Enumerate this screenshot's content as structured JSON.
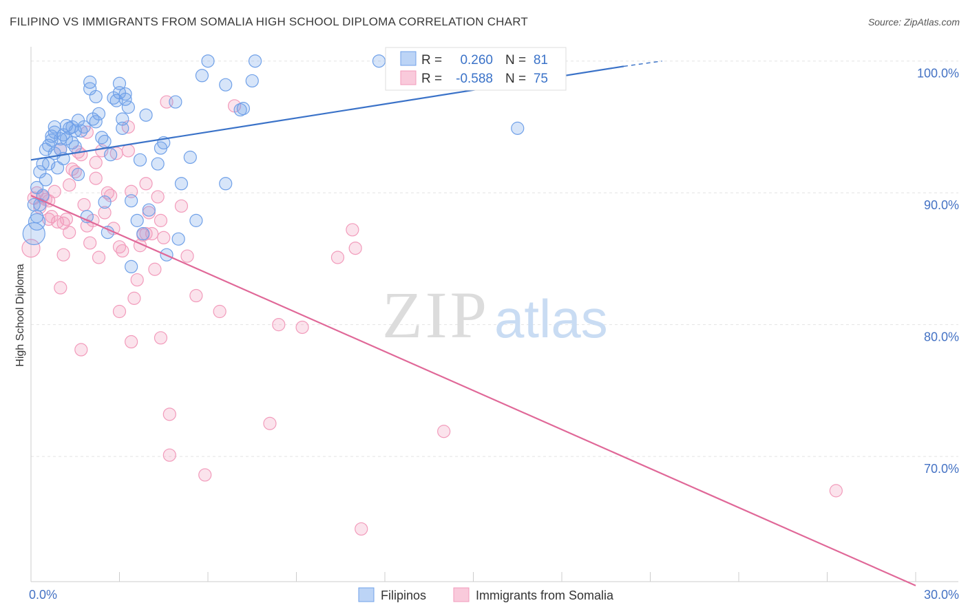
{
  "title": "FILIPINO VS IMMIGRANTS FROM SOMALIA HIGH SCHOOL DIPLOMA CORRELATION CHART",
  "source": "Source: ZipAtlas.com",
  "watermark": {
    "zip": "ZIP",
    "atlas": "atlas"
  },
  "chart_data": {
    "type": "scatter",
    "title": "FILIPINO VS IMMIGRANTS FROM SOMALIA HIGH SCHOOL DIPLOMA CORRELATION CHART",
    "xlabel": "",
    "ylabel": "High School Diploma",
    "xlim": [
      0,
      30
    ],
    "ylim": [
      60.5,
      101.5
    ],
    "x_tick_labels": [
      "0.0%",
      "30.0%"
    ],
    "y_ticks": [
      70,
      80,
      90,
      100
    ],
    "y_tick_labels": [
      "70.0%",
      "80.0%",
      "90.0%",
      "100.0%"
    ],
    "grid": true,
    "legend_position": "bottom-center",
    "series": [
      {
        "name": "Filipinos",
        "color": "#6fa0e8",
        "line_color": "#3a72c8",
        "stats": {
          "r_label": "R =",
          "r": "0.260",
          "n_label": "N =",
          "n": "81"
        },
        "trend": {
          "x0": 0,
          "y0": 92.5,
          "x1": 20.1,
          "y1": 99.6,
          "dash_x1": 21.4,
          "dash_y1": 100.0
        },
        "points": [
          [
            0.1,
            86.9
          ],
          [
            0.1,
            89.1
          ],
          [
            0.2,
            90.4
          ],
          [
            0.2,
            88.2
          ],
          [
            0.3,
            91.6
          ],
          [
            0.4,
            92.2
          ],
          [
            0.4,
            89.8
          ],
          [
            0.5,
            93.3
          ],
          [
            0.5,
            91.0
          ],
          [
            0.6,
            93.6
          ],
          [
            0.6,
            92.2
          ],
          [
            0.7,
            94.0
          ],
          [
            0.7,
            94.3
          ],
          [
            0.8,
            93.0
          ],
          [
            0.8,
            95.0
          ],
          [
            0.8,
            94.6
          ],
          [
            0.9,
            91.9
          ],
          [
            1.0,
            94.1
          ],
          [
            1.0,
            93.3
          ],
          [
            1.1,
            94.4
          ],
          [
            1.1,
            92.6
          ],
          [
            1.2,
            95.1
          ],
          [
            1.2,
            94.1
          ],
          [
            1.3,
            94.9
          ],
          [
            1.4,
            95.0
          ],
          [
            1.4,
            93.8
          ],
          [
            1.5,
            94.7
          ],
          [
            1.5,
            93.5
          ],
          [
            1.6,
            91.4
          ],
          [
            1.6,
            95.5
          ],
          [
            1.7,
            94.7
          ],
          [
            1.8,
            95.0
          ],
          [
            1.9,
            88.2
          ],
          [
            2.0,
            98.4
          ],
          [
            2.0,
            97.9
          ],
          [
            2.1,
            95.6
          ],
          [
            2.2,
            97.3
          ],
          [
            2.2,
            95.4
          ],
          [
            2.3,
            96.0
          ],
          [
            2.4,
            94.2
          ],
          [
            2.5,
            93.9
          ],
          [
            2.5,
            89.3
          ],
          [
            2.6,
            87.0
          ],
          [
            2.7,
            92.9
          ],
          [
            2.8,
            97.2
          ],
          [
            2.9,
            97.0
          ],
          [
            3.0,
            97.6
          ],
          [
            3.0,
            98.3
          ],
          [
            3.1,
            94.9
          ],
          [
            3.1,
            95.6
          ],
          [
            3.2,
            97.1
          ],
          [
            3.2,
            97.5
          ],
          [
            3.3,
            96.5
          ],
          [
            3.4,
            89.4
          ],
          [
            3.4,
            84.4
          ],
          [
            3.6,
            87.9
          ],
          [
            3.7,
            92.5
          ],
          [
            3.8,
            86.9
          ],
          [
            3.9,
            95.9
          ],
          [
            4.0,
            88.7
          ],
          [
            4.3,
            92.2
          ],
          [
            4.4,
            93.4
          ],
          [
            4.5,
            93.8
          ],
          [
            4.6,
            85.3
          ],
          [
            4.9,
            96.9
          ],
          [
            5.0,
            86.5
          ],
          [
            5.1,
            90.7
          ],
          [
            5.4,
            92.7
          ],
          [
            5.6,
            87.9
          ],
          [
            5.8,
            98.9
          ],
          [
            6.0,
            100.0
          ],
          [
            6.6,
            98.2
          ],
          [
            6.6,
            90.7
          ],
          [
            7.1,
            96.3
          ],
          [
            7.2,
            96.4
          ],
          [
            7.5,
            98.5
          ],
          [
            7.6,
            100.0
          ],
          [
            11.8,
            100.0
          ],
          [
            16.5,
            94.9
          ],
          [
            0.3,
            89.1
          ],
          [
            0.2,
            87.8
          ]
        ]
      },
      {
        "name": "Immigrants from Somalia",
        "color": "#f29bbb",
        "line_color": "#e06898",
        "stats": {
          "r_label": "R =",
          "r": "-0.588",
          "n_label": "N =",
          "n": "75"
        },
        "trend": {
          "x0": 0,
          "y0": 89.8,
          "x1": 30,
          "y1": 60.2
        },
        "points": [
          [
            0.0,
            85.8
          ],
          [
            0.1,
            89.6
          ],
          [
            0.2,
            90.0
          ],
          [
            0.3,
            88.9
          ],
          [
            0.4,
            89.7
          ],
          [
            0.5,
            89.5
          ],
          [
            0.6,
            88.0
          ],
          [
            0.7,
            88.2
          ],
          [
            0.8,
            90.1
          ],
          [
            0.9,
            87.8
          ],
          [
            1.0,
            93.3
          ],
          [
            1.0,
            82.8
          ],
          [
            1.1,
            85.3
          ],
          [
            1.1,
            87.7
          ],
          [
            1.2,
            88.0
          ],
          [
            1.3,
            87.0
          ],
          [
            1.3,
            90.6
          ],
          [
            1.4,
            91.8
          ],
          [
            1.5,
            91.6
          ],
          [
            1.6,
            93.1
          ],
          [
            1.7,
            92.9
          ],
          [
            1.7,
            78.1
          ],
          [
            1.8,
            89.1
          ],
          [
            1.9,
            94.6
          ],
          [
            2.0,
            86.2
          ],
          [
            2.1,
            87.9
          ],
          [
            2.2,
            92.3
          ],
          [
            2.3,
            85.1
          ],
          [
            2.4,
            93.2
          ],
          [
            2.5,
            88.5
          ],
          [
            2.6,
            90.0
          ],
          [
            2.7,
            89.8
          ],
          [
            2.8,
            87.3
          ],
          [
            2.9,
            93.0
          ],
          [
            3.0,
            85.9
          ],
          [
            3.0,
            81.0
          ],
          [
            3.1,
            85.6
          ],
          [
            3.3,
            95.0
          ],
          [
            3.3,
            93.2
          ],
          [
            3.4,
            90.1
          ],
          [
            3.4,
            78.7
          ],
          [
            3.5,
            82.0
          ],
          [
            3.6,
            83.4
          ],
          [
            3.7,
            86.0
          ],
          [
            3.8,
            86.8
          ],
          [
            3.9,
            90.7
          ],
          [
            3.9,
            86.9
          ],
          [
            4.0,
            88.5
          ],
          [
            4.1,
            86.9
          ],
          [
            4.2,
            84.2
          ],
          [
            4.3,
            89.7
          ],
          [
            4.4,
            79.0
          ],
          [
            4.4,
            87.9
          ],
          [
            4.5,
            86.6
          ],
          [
            4.6,
            96.9
          ],
          [
            4.7,
            73.2
          ],
          [
            4.7,
            70.1
          ],
          [
            5.1,
            89.0
          ],
          [
            5.3,
            85.2
          ],
          [
            5.6,
            82.2
          ],
          [
            5.9,
            68.6
          ],
          [
            6.4,
            81.0
          ],
          [
            6.9,
            96.6
          ],
          [
            8.1,
            72.5
          ],
          [
            8.4,
            80.0
          ],
          [
            9.2,
            79.8
          ],
          [
            10.4,
            85.1
          ],
          [
            10.9,
            87.2
          ],
          [
            11.0,
            85.8
          ],
          [
            11.2,
            64.5
          ],
          [
            14.0,
            71.9
          ],
          [
            27.3,
            67.4
          ],
          [
            0.6,
            89.4
          ],
          [
            2.2,
            91.1
          ],
          [
            1.9,
            87.5
          ]
        ]
      }
    ]
  }
}
